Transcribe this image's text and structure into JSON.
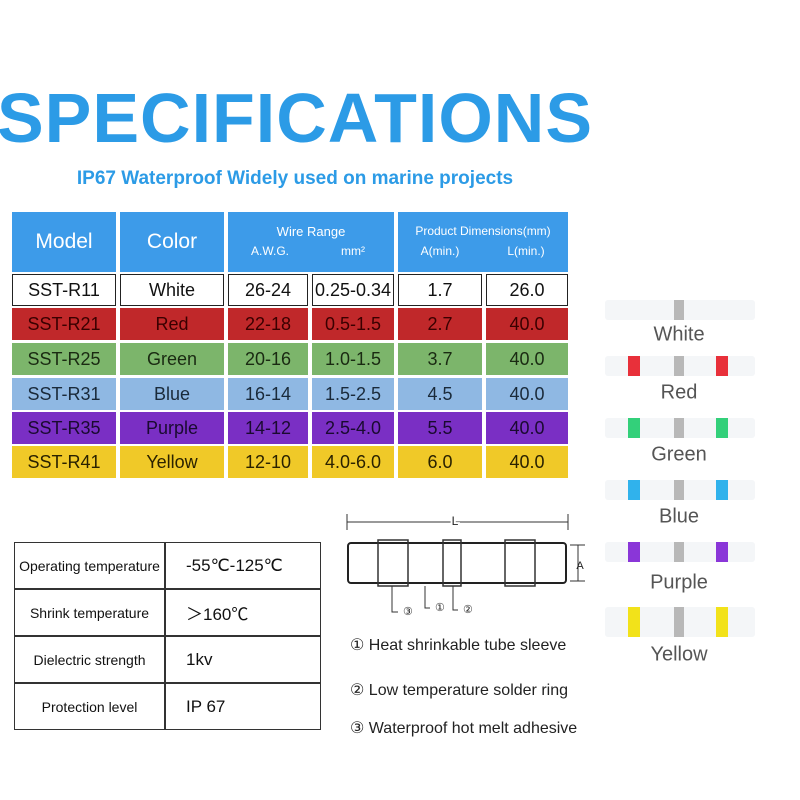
{
  "header": {
    "title": "SPECIFICATIONS",
    "subtitle": "IP67 Waterproof Widely used on marine projects"
  },
  "spec_table": {
    "header": {
      "model": "Model",
      "color": "Color",
      "wire_range": "Wire Range",
      "awg": "A.W.G.",
      "mm2": "mm²",
      "dimensions": "Product Dimensions(mm)",
      "a_min": "A(min.)",
      "l_min": "L(min.)"
    },
    "rows": [
      [
        "SST-R11",
        "White",
        "26-24",
        "0.25-0.34",
        "1.7",
        "26.0"
      ],
      [
        "SST-R21",
        "Red",
        "22-18",
        "0.5-1.5",
        "2.7",
        "40.0"
      ],
      [
        "SST-R25",
        "Green",
        "20-16",
        "1.0-1.5",
        "3.7",
        "40.0"
      ],
      [
        "SST-R31",
        "Blue",
        "16-14",
        "1.5-2.5",
        "4.5",
        "40.0"
      ],
      [
        "SST-R35",
        "Purple",
        "14-12",
        "2.5-4.0",
        "5.5",
        "40.0"
      ],
      [
        "SST-R41",
        "Yellow",
        "12-10",
        "4.0-6.0",
        "6.0",
        "40.0"
      ]
    ]
  },
  "properties": {
    "rows": [
      [
        "Operating temperature",
        "-55℃-125℃"
      ],
      [
        "Shrink temperature",
        "＞160℃"
      ],
      [
        "Dielectric strength",
        "1kv"
      ],
      [
        "Protection level",
        "IP 67"
      ]
    ]
  },
  "diagram": {
    "length_label": "L",
    "diameter_label": "A",
    "callouts": [
      "③",
      "①",
      "②"
    ],
    "legend": [
      "① Heat shrinkable tube sleeve",
      "② Low temperature solder ring",
      "③ Waterproof hot melt adhesive"
    ]
  },
  "samples": [
    "White",
    "Red",
    "Green",
    "Blue",
    "Purple",
    "Yellow"
  ]
}
